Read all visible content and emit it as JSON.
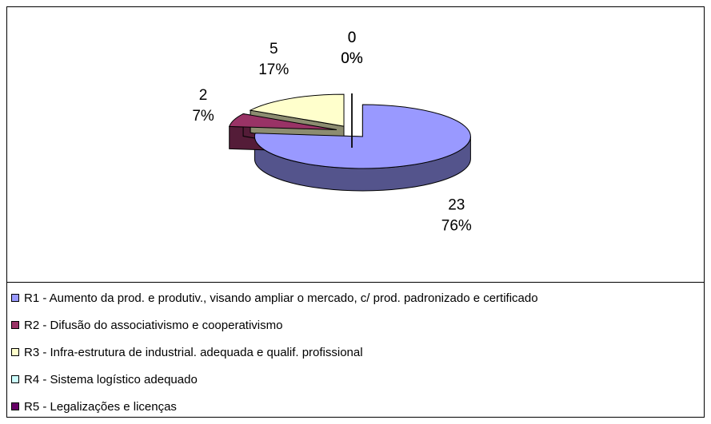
{
  "chart_data": {
    "type": "pie3d",
    "categories": [
      "R1 - Aumento da prod. e produtiv., visando ampliar o mercado, c/ prod. padronizado e certificado",
      "R2 - Difusão  do associativismo e cooperativismo",
      "R3 - Infra-estrutura de industrial. adequada e qualif. profissional",
      "R4 - Sistema logístico adequado",
      "R5 - Legalizações e licenças"
    ],
    "values": [
      23,
      2,
      5,
      0,
      0
    ],
    "value_labels": [
      "76%",
      "7%",
      "17%",
      "0%",
      "0%"
    ],
    "colors": [
      "#9999ff",
      "#993366",
      "#ffffcc",
      "#ccffff",
      "#660066"
    ],
    "legend": "bottom"
  }
}
